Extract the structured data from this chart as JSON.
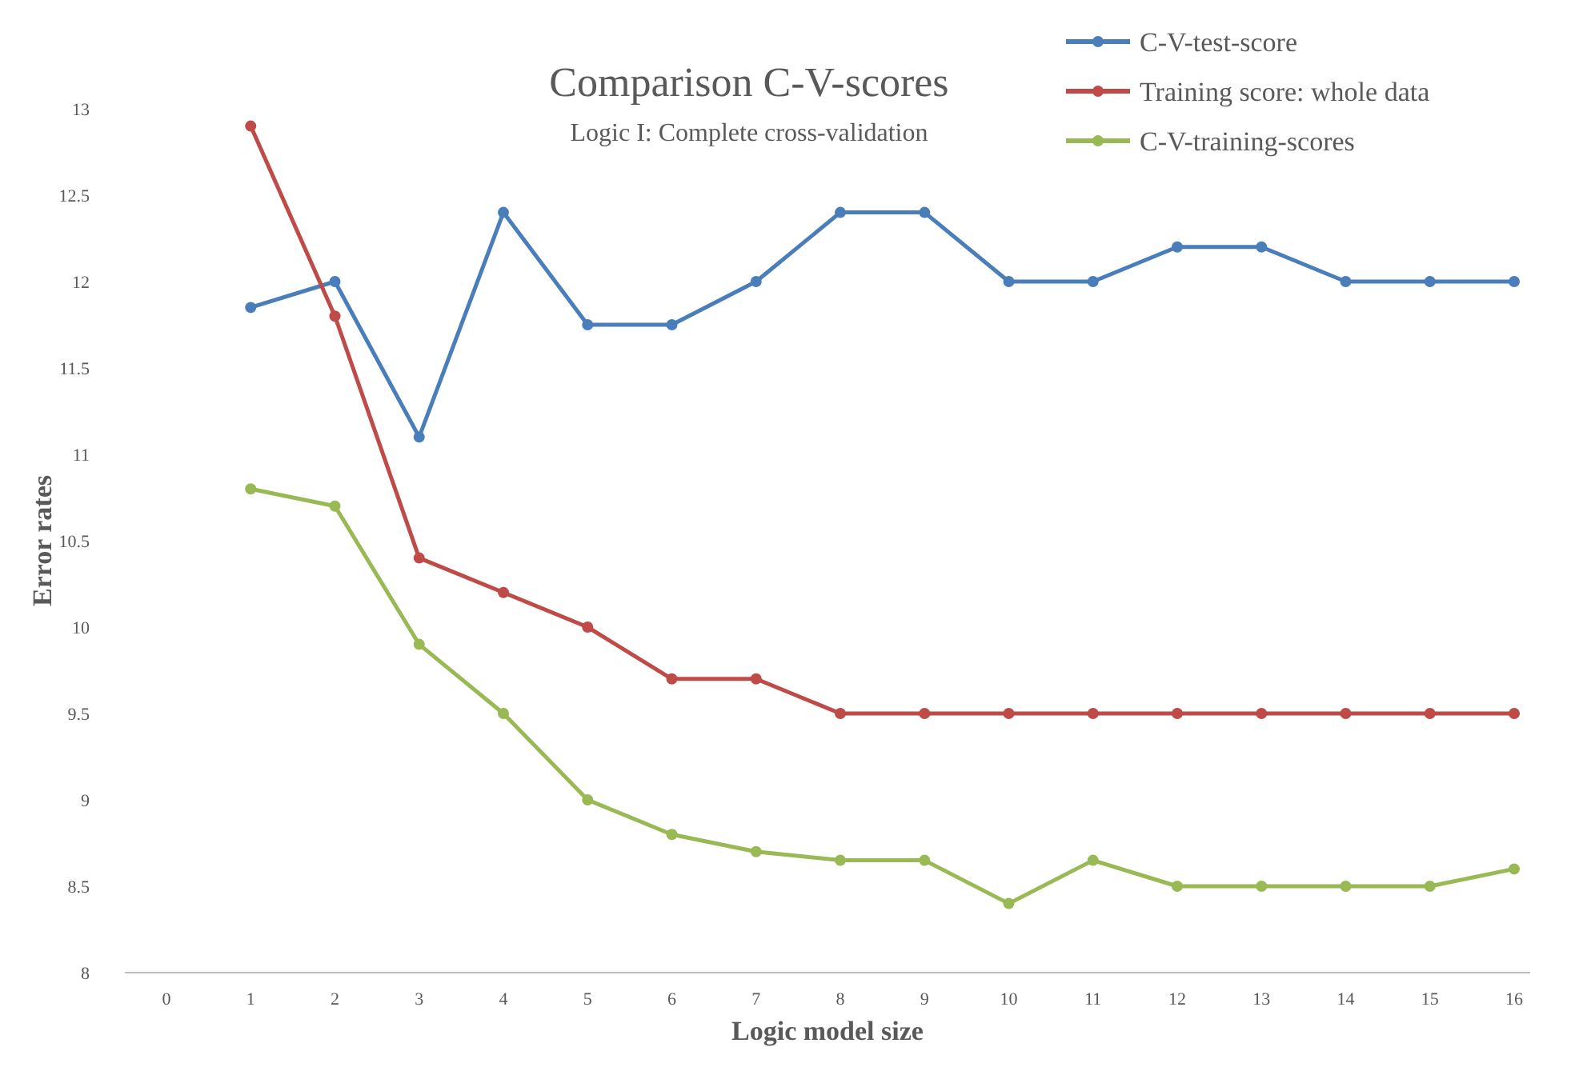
{
  "chart_data": {
    "type": "line",
    "title": "Comparison C-V-scores",
    "subtitle": "Logic I: Complete cross-validation",
    "xlabel": "Logic model size",
    "ylabel": "Error rates",
    "categories": [
      "0",
      "1",
      "2",
      "3",
      "4",
      "5",
      "6",
      "7",
      "8",
      "9",
      "10",
      "11",
      "12",
      "13",
      "14",
      "15",
      "16"
    ],
    "series": [
      {
        "name": "C-V-test-score",
        "color": "#4a7ebb",
        "values": [
          null,
          11.85,
          12,
          11.1,
          12.4,
          11.75,
          11.75,
          12,
          12.4,
          12.4,
          12,
          12,
          12.2,
          12.2,
          12,
          12,
          12
        ]
      },
      {
        "name": "Training score: whole data",
        "color": "#be4b48",
        "values": [
          null,
          12.9,
          11.8,
          10.4,
          10.2,
          10,
          9.7,
          9.7,
          9.5,
          9.5,
          9.5,
          9.5,
          9.5,
          9.5,
          9.5,
          9.5,
          9.5
        ]
      },
      {
        "name": "C-V-training-scores",
        "color": "#98b954",
        "values": [
          null,
          10.8,
          10.7,
          9.9,
          9.5,
          9,
          8.8,
          8.7,
          8.65,
          8.65,
          8.4,
          8.65,
          8.5,
          8.5,
          8.5,
          8.5,
          8.6
        ]
      }
    ],
    "ylim": [
      8,
      13
    ],
    "yticks": [
      8,
      8.5,
      9,
      9.5,
      10,
      10.5,
      11,
      11.5,
      12,
      12.5,
      13
    ],
    "grid": false,
    "legend": "top right",
    "marker": "circle",
    "line_style": "solid"
  }
}
